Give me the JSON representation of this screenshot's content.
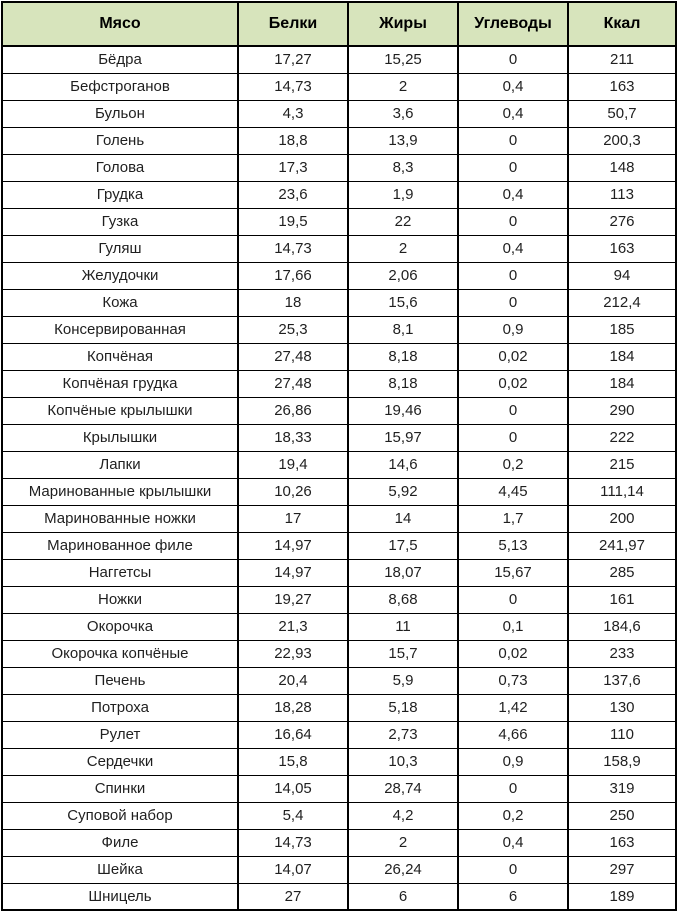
{
  "chart_data": {
    "type": "table",
    "columns": [
      "Мясо",
      "Белки",
      "Жиры",
      "Углеводы",
      "Ккал"
    ],
    "rows": [
      [
        "Бёдра",
        "17,27",
        "15,25",
        "0",
        "211"
      ],
      [
        "Бефстроганов",
        "14,73",
        "2",
        "0,4",
        "163"
      ],
      [
        "Бульон",
        "4,3",
        "3,6",
        "0,4",
        "50,7"
      ],
      [
        "Голень",
        "18,8",
        "13,9",
        "0",
        "200,3"
      ],
      [
        "Голова",
        "17,3",
        "8,3",
        "0",
        "148"
      ],
      [
        "Грудка",
        "23,6",
        "1,9",
        "0,4",
        "113"
      ],
      [
        "Гузка",
        "19,5",
        "22",
        "0",
        "276"
      ],
      [
        "Гуляш",
        "14,73",
        "2",
        "0,4",
        "163"
      ],
      [
        "Желудочки",
        "17,66",
        "2,06",
        "0",
        "94"
      ],
      [
        "Кожа",
        "18",
        "15,6",
        "0",
        "212,4"
      ],
      [
        "Консервированная",
        "25,3",
        "8,1",
        "0,9",
        "185"
      ],
      [
        "Копчёная",
        "27,48",
        "8,18",
        "0,02",
        "184"
      ],
      [
        "Копчёная грудка",
        "27,48",
        "8,18",
        "0,02",
        "184"
      ],
      [
        "Копчёные крылышки",
        "26,86",
        "19,46",
        "0",
        "290"
      ],
      [
        "Крылышки",
        "18,33",
        "15,97",
        "0",
        "222"
      ],
      [
        "Лапки",
        "19,4",
        "14,6",
        "0,2",
        "215"
      ],
      [
        "Маринованные крылышки",
        "10,26",
        "5,92",
        "4,45",
        "111,14"
      ],
      [
        "Маринованные ножки",
        "17",
        "14",
        "1,7",
        "200"
      ],
      [
        "Маринованное филе",
        "14,97",
        "17,5",
        "5,13",
        "241,97"
      ],
      [
        "Наггетсы",
        "14,97",
        "18,07",
        "15,67",
        "285"
      ],
      [
        "Ножки",
        "19,27",
        "8,68",
        "0",
        "161"
      ],
      [
        "Окорочка",
        "21,3",
        "11",
        "0,1",
        "184,6"
      ],
      [
        "Окорочка копчёные",
        "22,93",
        "15,7",
        "0,02",
        "233"
      ],
      [
        "Печень",
        "20,4",
        "5,9",
        "0,73",
        "137,6"
      ],
      [
        "Потроха",
        "18,28",
        "5,18",
        "1,42",
        "130"
      ],
      [
        "Рулет",
        "16,64",
        "2,73",
        "4,66",
        "110"
      ],
      [
        "Сердечки",
        "15,8",
        "10,3",
        "0,9",
        "158,9"
      ],
      [
        "Спинки",
        "14,05",
        "28,74",
        "0",
        "319"
      ],
      [
        "Суповой набор",
        "5,4",
        "4,2",
        "0,2",
        "250"
      ],
      [
        "Филе",
        "14,73",
        "2",
        "0,4",
        "163"
      ],
      [
        "Шейка",
        "14,07",
        "26,24",
        "0",
        "297"
      ],
      [
        "Шницель",
        "27",
        "6",
        "6",
        "189"
      ]
    ],
    "colors": {
      "header_bg": "#d7e4bc",
      "border": "#000000",
      "text": "#1f1f1f"
    }
  }
}
